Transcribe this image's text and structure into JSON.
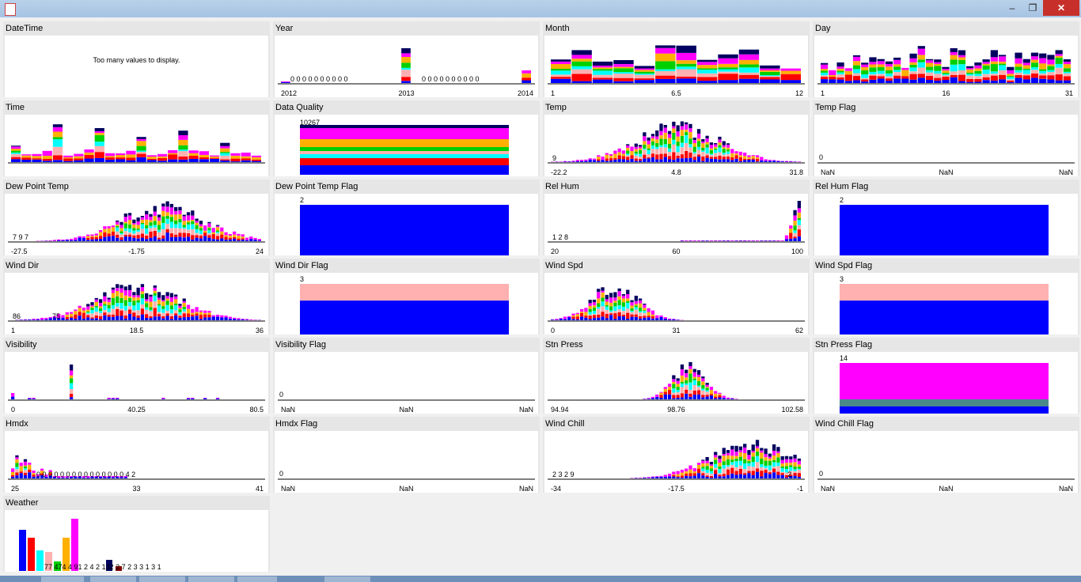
{
  "window": {
    "minimize_icon": "minimize-icon",
    "maximize_icon": "maximize-icon",
    "close_icon": "close-icon",
    "min_glyph": "–",
    "max_glyph": "❐",
    "close_glyph": "✕"
  },
  "colors": [
    "#0000ff",
    "#ff0000",
    "#00ffff",
    "#ffb0b0",
    "#00d000",
    "#ffb000",
    "#ff00ff",
    "#000060",
    "#800000"
  ],
  "panels": [
    {
      "title": "DateTime",
      "message": "Too many values to display."
    },
    {
      "title": "Year",
      "chart": {
        "type": "bar",
        "bars": [
          {
            "x": 0,
            "h": 0.08,
            "c": 0
          },
          {
            "x": 12,
            "h": 0.9
          },
          {
            "x": 23,
            "h": 0.3
          }
        ],
        "xticks": [
          "2012",
          "2013",
          "2014"
        ],
        "zeros": "0  0  0  0  0  0  0  0  0  0",
        "zeros2": "0  0  0  0  0  0  0  0  0  0"
      }
    },
    {
      "title": "Month",
      "chart": {
        "type": "bar",
        "xticks": [
          "1",
          "6.5",
          "12"
        ]
      }
    },
    {
      "title": "Day",
      "chart": {
        "type": "bar",
        "xticks": [
          "1",
          "16",
          "31"
        ]
      }
    },
    {
      "title": "Time",
      "chart": {
        "type": "bar"
      }
    },
    {
      "title": "Data Quality",
      "chart": {
        "type": "block",
        "count": "10267"
      }
    },
    {
      "title": "Temp",
      "chart": {
        "type": "hist",
        "label": "9",
        "xticks": [
          "-22.2",
          "4.8",
          "31.8"
        ]
      }
    },
    {
      "title": "Temp Flag",
      "chart": {
        "type": "empty",
        "label": "0",
        "xticks": [
          "NaN",
          "NaN",
          "NaN"
        ]
      }
    },
    {
      "title": "Dew Point Temp",
      "chart": {
        "type": "hist",
        "label": "7  9  7",
        "xticks": [
          "-27.5",
          "-1.75",
          "24"
        ]
      }
    },
    {
      "title": "Dew Point Temp Flag",
      "chart": {
        "type": "flag",
        "count": "2",
        "split": 1
      }
    },
    {
      "title": "Rel Hum",
      "chart": {
        "type": "hist",
        "label": "1  2  8",
        "xticks": [
          "20",
          "60",
          "100"
        ]
      }
    },
    {
      "title": "Rel Hum Flag",
      "chart": {
        "type": "flag",
        "count": "2",
        "split": 1
      }
    },
    {
      "title": "Wind Dir",
      "chart": {
        "type": "hist",
        "label": "86",
        "label2": "75",
        "xticks": [
          "1",
          "18.5",
          "36"
        ]
      }
    },
    {
      "title": "Wind Dir Flag",
      "chart": {
        "type": "flag",
        "count": "3",
        "split": 0.67
      }
    },
    {
      "title": "Wind Spd",
      "chart": {
        "type": "hist",
        "xticks": [
          "0",
          "31",
          "62"
        ]
      }
    },
    {
      "title": "Wind Spd Flag",
      "chart": {
        "type": "flag",
        "count": "3",
        "split": 0.67
      }
    },
    {
      "title": "Visibility",
      "chart": {
        "type": "hist",
        "xticks": [
          "0",
          "40.25",
          "80.5"
        ]
      }
    },
    {
      "title": "Visibility Flag",
      "chart": {
        "type": "empty",
        "label": "0",
        "xticks": [
          "NaN",
          "NaN",
          "NaN"
        ]
      }
    },
    {
      "title": "Stn Press",
      "chart": {
        "type": "hist",
        "xticks": [
          "94.94",
          "98.76",
          "102.58"
        ]
      }
    },
    {
      "title": "Stn Press Flag",
      "chart": {
        "type": "stack",
        "count": "14"
      }
    },
    {
      "title": "Hmdx",
      "chart": {
        "type": "hist",
        "label": "0  0  0  0  0  0  0  0  0  0  0  0  0  0  0  4  2",
        "xticks": [
          "25",
          "33",
          "41"
        ]
      }
    },
    {
      "title": "Hmdx Flag",
      "chart": {
        "type": "empty",
        "label": "0",
        "xticks": [
          "NaN",
          "NaN",
          "NaN"
        ]
      }
    },
    {
      "title": "Wind Chill",
      "chart": {
        "type": "hist",
        "label": "2  3  2  9",
        "label2": "2",
        "xticks": [
          "-34",
          "-17.5",
          "-1"
        ]
      }
    },
    {
      "title": "Wind Chill Flag",
      "chart": {
        "type": "empty",
        "label": "0",
        "xticks": [
          "NaN",
          "NaN",
          "NaN"
        ]
      }
    },
    {
      "title": "Weather",
      "chart": {
        "type": "weather",
        "labels": "77          474     4  91 2  4  2  132  2  7  2  3  3  1  3  1"
      }
    }
  ]
}
